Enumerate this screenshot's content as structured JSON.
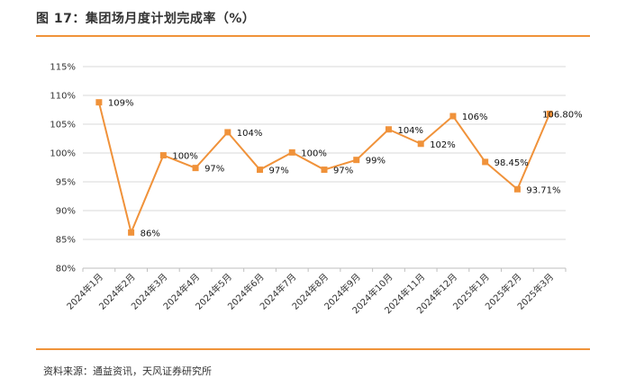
{
  "header": {
    "title": "图 17：集团场月度计划完成率（%）"
  },
  "footer": {
    "source": "资料来源：通益资讯，天风证券研究所"
  },
  "colors": {
    "accent": "#f0933a",
    "series": "#f0923a",
    "grid": "#d9d9d9"
  },
  "chart_data": {
    "type": "line",
    "title": "",
    "xlabel": "",
    "ylabel": "",
    "ylim": [
      80,
      115
    ],
    "yticks": [
      "80%",
      "85%",
      "90%",
      "95%",
      "100%",
      "105%",
      "110%",
      "115%"
    ],
    "grid": "horizontal",
    "legend": "none",
    "categories": [
      "2024年1月",
      "2024年2月",
      "2024年3月",
      "2024年4月",
      "2024年5月",
      "2024年6月",
      "2024年7月",
      "2024年8月",
      "2024年9月",
      "2024年10月",
      "2024年11月",
      "2024年12月",
      "2025年1月",
      "2025年2月",
      "2025年3月"
    ],
    "series": [
      {
        "values": [
          108.8,
          86.2,
          99.6,
          97.4,
          103.6,
          97.1,
          100.1,
          97.1,
          98.8,
          104.1,
          101.6,
          106.4,
          98.45,
          93.71,
          106.8
        ],
        "labels": [
          "109%",
          "86%",
          "100%",
          "97%",
          "104%",
          "97%",
          "100%",
          "97%",
          "99%",
          "104%",
          "102%",
          "106%",
          "98.45%",
          "93.71%",
          "106.80%"
        ]
      }
    ]
  }
}
